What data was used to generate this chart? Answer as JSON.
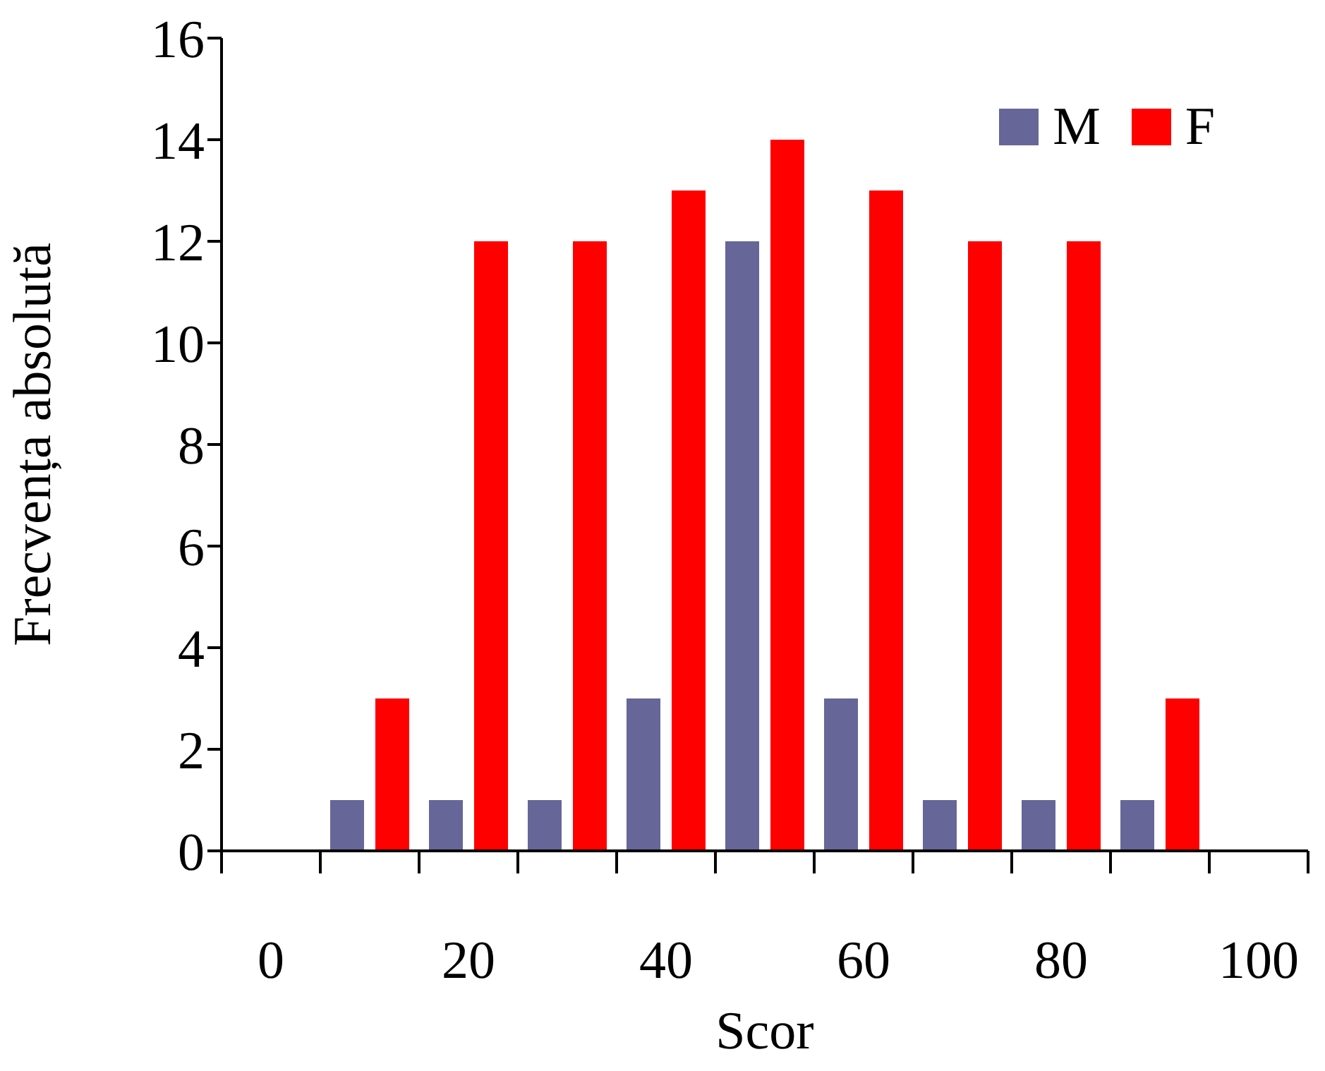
{
  "chart_data": {
    "type": "bar",
    "xlabel": "Scor",
    "ylabel": "Frecvența absolută",
    "categories": [
      "0",
      null,
      "20",
      null,
      "40",
      null,
      "60",
      null,
      "80",
      null,
      "100"
    ],
    "series": [
      {
        "name": "M",
        "color": "#666699",
        "values": [
          0,
          1,
          1,
          1,
          3,
          12,
          3,
          1,
          1,
          1,
          0
        ]
      },
      {
        "name": "F",
        "color": "#ff0000",
        "values": [
          0,
          3,
          12,
          12,
          13,
          14,
          13,
          12,
          12,
          3,
          0
        ]
      }
    ],
    "ylim": [
      0,
      16
    ],
    "yticks": [
      0,
      2,
      4,
      6,
      8,
      10,
      12,
      14,
      16
    ],
    "grid": false,
    "legend": "top right"
  }
}
